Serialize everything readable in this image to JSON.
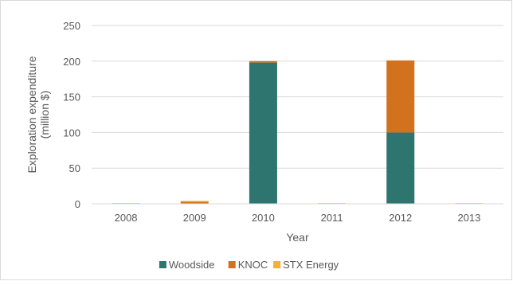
{
  "chart_data": {
    "type": "bar",
    "stacked": true,
    "categories": [
      "2008",
      "2009",
      "2010",
      "2011",
      "2012",
      "2013"
    ],
    "series": [
      {
        "name": "Woodside",
        "color": "#2e7570",
        "values": [
          0,
          0,
          198,
          0,
          100,
          0
        ]
      },
      {
        "name": "KNOC",
        "color": "#d2711e",
        "values": [
          0,
          3,
          2,
          0,
          101,
          0
        ]
      },
      {
        "name": "STX Energy",
        "color": "#f2b134",
        "values": [
          1,
          1,
          0,
          1,
          0,
          1
        ]
      }
    ],
    "xlabel": "Year",
    "ylabel": "Exploration expenditure\n(million $)",
    "ylim": [
      0,
      250
    ],
    "yticks": [
      0,
      50,
      100,
      150,
      200,
      250
    ],
    "grid": true,
    "legend": "bottom"
  }
}
